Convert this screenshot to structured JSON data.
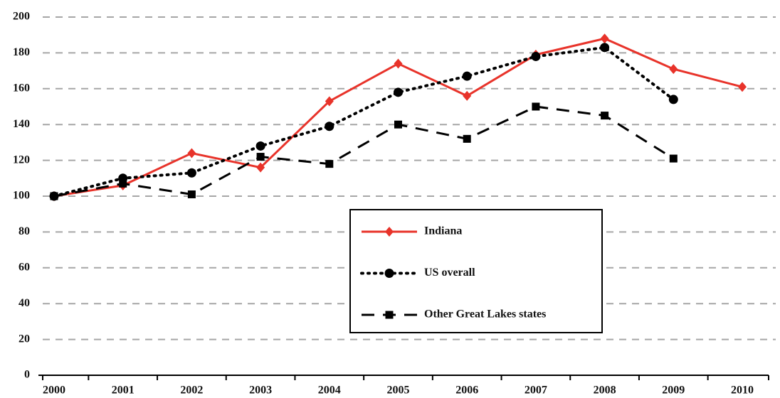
{
  "chart_data": {
    "type": "line",
    "categories": [
      "2000",
      "2001",
      "2002",
      "2003",
      "2004",
      "2005",
      "2006",
      "2007",
      "2008",
      "2009",
      "2010"
    ],
    "series": [
      {
        "name": "Indiana",
        "color": "#e8332a",
        "style": "solid",
        "marker": "diamond",
        "values": [
          100,
          106,
          124,
          116,
          153,
          174,
          156,
          179,
          188,
          171,
          161
        ]
      },
      {
        "name": "US overall",
        "color": "#000000",
        "style": "dotted",
        "marker": "circle",
        "values": [
          100,
          110,
          113,
          128,
          139,
          158,
          167,
          178,
          183,
          154,
          null
        ]
      },
      {
        "name": "Other Great Lakes states",
        "color": "#000000",
        "style": "dashed",
        "marker": "square",
        "values": [
          100,
          107,
          101,
          122,
          118,
          140,
          132,
          150,
          145,
          121,
          null
        ]
      }
    ],
    "ylim": [
      0,
      200
    ],
    "yticks": [
      0,
      20,
      40,
      60,
      80,
      100,
      120,
      140,
      160,
      180,
      200
    ],
    "grid": true
  }
}
